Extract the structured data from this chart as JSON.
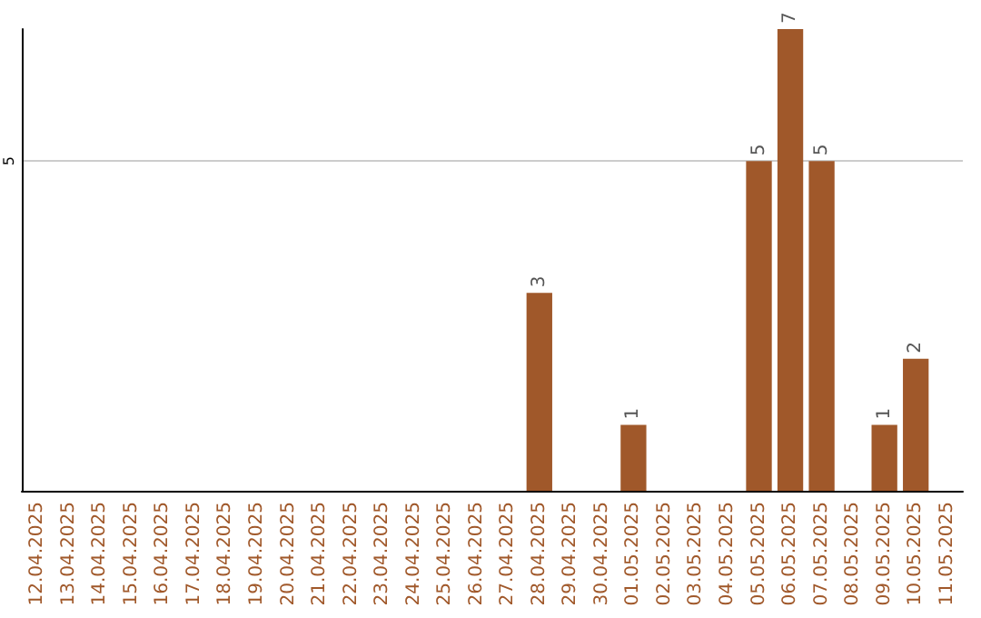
{
  "chart_data": {
    "type": "bar",
    "categories": [
      "12.04.2025",
      "13.04.2025",
      "14.04.2025",
      "15.04.2025",
      "16.04.2025",
      "17.04.2025",
      "18.04.2025",
      "19.04.2025",
      "20.04.2025",
      "21.04.2025",
      "22.04.2025",
      "23.04.2025",
      "24.04.2025",
      "25.04.2025",
      "26.04.2025",
      "27.04.2025",
      "28.04.2025",
      "29.04.2025",
      "30.04.2025",
      "01.05.2025",
      "02.05.2025",
      "03.05.2025",
      "04.05.2025",
      "05.05.2025",
      "06.05.2025",
      "07.05.2025",
      "08.05.2025",
      "09.05.2025",
      "10.05.2025",
      "11.05.2025"
    ],
    "values": [
      null,
      null,
      null,
      null,
      null,
      null,
      null,
      null,
      null,
      null,
      null,
      null,
      null,
      null,
      null,
      null,
      3,
      null,
      null,
      1,
      null,
      null,
      null,
      5,
      7,
      5,
      null,
      1,
      2,
      null
    ],
    "data_labels": true,
    "color": "#a0582a",
    "ylim": [
      0,
      7
    ],
    "yticks": [
      5
    ],
    "grid": "y"
  }
}
